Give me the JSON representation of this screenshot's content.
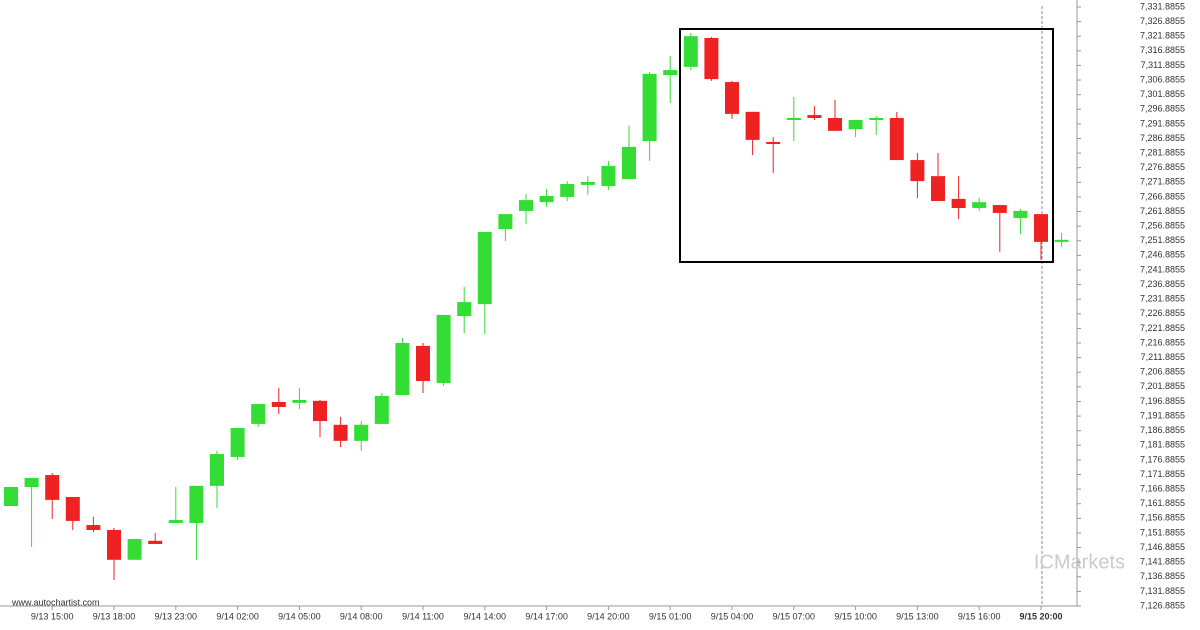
{
  "chart_data": {
    "type": "candlestick",
    "source": "www.autochartist.com",
    "watermark": "ICMarkets",
    "categories": [
      null,
      null,
      "9/13 15:00",
      null,
      null,
      "9/13 18:00",
      null,
      null,
      "9/13 23:00",
      null,
      null,
      "9/14 02:00",
      null,
      null,
      "9/14 05:00",
      null,
      null,
      "9/14 08:00",
      null,
      null,
      "9/14 11:00",
      null,
      null,
      "9/14 14:00",
      null,
      null,
      "9/14 17:00",
      null,
      null,
      "9/14 20:00",
      null,
      null,
      "9/15 01:00",
      null,
      null,
      "9/15 04:00",
      null,
      null,
      "9/15 07:00",
      null,
      null,
      "9/15 10:00",
      null,
      null,
      "9/15 13:00",
      null,
      null,
      "9/15 16:00",
      null,
      null,
      "9/15 20:00",
      null
    ],
    "open": [
      7161.1,
      7167.6,
      7171.7,
      7164.2,
      7154.6,
      7152.9,
      7142.7,
      7149.2,
      7155.3,
      7155.3,
      7168.0,
      7177.9,
      7189.2,
      7196.7,
      7196.4,
      7197.1,
      7188.9,
      7183.4,
      7189.2,
      7199.1,
      7215.9,
      7203.2,
      7226.1,
      7230.2,
      7255.9,
      7262.1,
      7265.1,
      7266.9,
      7271.0,
      7270.6,
      7273.0,
      7286.0,
      7308.6,
      7311.4,
      7321.3,
      7306.2,
      7296.0,
      7285.7,
      7293.2,
      7294.9,
      7293.9,
      7290.1,
      7293.2,
      7293.9,
      7279.5,
      7274.0,
      7266.2,
      7263.1,
      7264.1,
      7259.7,
      7261.0,
      7251.5
    ],
    "high": [
      7167.6,
      7170.7,
      7172.4,
      7164.2,
      7157.4,
      7153.6,
      7149.8,
      7151.9,
      7167.6,
      7168.0,
      7180.0,
      7187.8,
      7196.0,
      7201.5,
      7201.5,
      7197.4,
      7191.6,
      7190.2,
      7199.8,
      7218.6,
      7216.9,
      7226.5,
      7236.1,
      7254.9,
      7261.0,
      7267.9,
      7269.6,
      7272.3,
      7274.0,
      7279.2,
      7291.2,
      7309.6,
      7315.1,
      7323.0,
      7321.6,
      7306.6,
      7296.0,
      7287.4,
      7301.1,
      7298.0,
      7300.1,
      7293.2,
      7294.6,
      7296.0,
      7281.9,
      7281.9,
      7274.0,
      7266.5,
      7264.1,
      7262.8,
      7261.0,
      7254.6
    ],
    "low": [
      7161.1,
      7147.1,
      7156.7,
      7152.9,
      7152.2,
      7135.8,
      7142.7,
      7148.1,
      7155.3,
      7142.7,
      7160.5,
      7176.9,
      7188.2,
      7192.6,
      7194.3,
      7184.7,
      7181.3,
      7180.0,
      7189.2,
      7199.1,
      7199.8,
      7202.2,
      7220.3,
      7220.0,
      7251.8,
      7257.6,
      7263.4,
      7265.5,
      7267.6,
      7269.3,
      7273.0,
      7279.2,
      7299.0,
      7310.3,
      7306.6,
      7293.6,
      7281.2,
      7275.1,
      7286.0,
      7293.2,
      7289.5,
      7287.4,
      7288.1,
      7279.5,
      7266.5,
      7265.5,
      7259.3,
      7262.1,
      7248.1,
      7254.2,
      7245.3,
      7249.8
    ],
    "close": [
      7167.6,
      7170.7,
      7163.2,
      7156.0,
      7152.9,
      7142.7,
      7149.8,
      7148.1,
      7156.3,
      7168.0,
      7178.9,
      7187.8,
      7196.0,
      7195.0,
      7197.4,
      7190.2,
      7183.4,
      7188.9,
      7198.8,
      7216.9,
      7203.9,
      7226.5,
      7230.9,
      7254.9,
      7261.0,
      7265.8,
      7267.2,
      7271.3,
      7272.0,
      7277.5,
      7284.0,
      7309.0,
      7310.3,
      7321.9,
      7307.2,
      7295.3,
      7286.4,
      7285.0,
      7293.9,
      7293.9,
      7289.5,
      7293.2,
      7293.9,
      7279.5,
      7272.3,
      7265.5,
      7263.1,
      7265.1,
      7261.4,
      7262.1,
      7251.5,
      7252.2
    ],
    "up_color": "#33dd33",
    "down_color": "#ee2222",
    "ylim": [
      7126.8855,
      7331.8855
    ],
    "yticks": [
      {
        "value": 7126.8855,
        "label": "7,126.8855"
      },
      {
        "value": 7131.8855,
        "label": "7,131.8855"
      },
      {
        "value": 7136.8855,
        "label": "7,136.8855"
      },
      {
        "value": 7141.8855,
        "label": "7,141.8855"
      },
      {
        "value": 7146.8855,
        "label": "7,146.8855"
      },
      {
        "value": 7151.8855,
        "label": "7,151.8855"
      },
      {
        "value": 7156.8855,
        "label": "7,156.8855"
      },
      {
        "value": 7161.8855,
        "label": "7,161.8855"
      },
      {
        "value": 7166.8855,
        "label": "7,166.8855"
      },
      {
        "value": 7171.8855,
        "label": "7,171.8855"
      },
      {
        "value": 7176.8855,
        "label": "7,176.8855"
      },
      {
        "value": 7181.8855,
        "label": "7,181.8855"
      },
      {
        "value": 7186.8855,
        "label": "7,186.8855"
      },
      {
        "value": 7191.8855,
        "label": "7,191.8855"
      },
      {
        "value": 7196.8855,
        "label": "7,196.8855"
      },
      {
        "value": 7201.8855,
        "label": "7,201.8855"
      },
      {
        "value": 7206.8855,
        "label": "7,206.8855"
      },
      {
        "value": 7211.8855,
        "label": "7,211.8855"
      },
      {
        "value": 7216.8855,
        "label": "7,216.8855"
      },
      {
        "value": 7221.8855,
        "label": "7,221.8855"
      },
      {
        "value": 7226.8855,
        "label": "7,226.8855"
      },
      {
        "value": 7231.8855,
        "label": "7,231.8855"
      },
      {
        "value": 7236.8855,
        "label": "7,236.8855"
      },
      {
        "value": 7241.8855,
        "label": "7,241.8855"
      },
      {
        "value": 7246.8855,
        "label": "7,246.8855"
      },
      {
        "value": 7251.8855,
        "label": "7,251.8855"
      },
      {
        "value": 7256.8855,
        "label": "7,256.8855"
      },
      {
        "value": 7261.8855,
        "label": "7,261.8855"
      },
      {
        "value": 7266.8855,
        "label": "7,266.8855"
      },
      {
        "value": 7271.8855,
        "label": "7,271.8855"
      },
      {
        "value": 7276.8855,
        "label": "7,276.8855"
      },
      {
        "value": 7281.8855,
        "label": "7,281.8855"
      },
      {
        "value": 7286.8855,
        "label": "7,286.8855"
      },
      {
        "value": 7291.8855,
        "label": "7,291.8855"
      },
      {
        "value": 7296.8855,
        "label": "7,296.8855"
      },
      {
        "value": 7301.8855,
        "label": "7,301.8855"
      },
      {
        "value": 7306.8855,
        "label": "7,306.8855"
      },
      {
        "value": 7311.8855,
        "label": "7,311.8855"
      },
      {
        "value": 7316.8855,
        "label": "7,316.8855"
      },
      {
        "value": 7321.8855,
        "label": "7,321.8855"
      },
      {
        "value": 7326.8855,
        "label": "7,326.8855"
      },
      {
        "value": 7331.8855,
        "label": "7,331.8855"
      }
    ]
  }
}
